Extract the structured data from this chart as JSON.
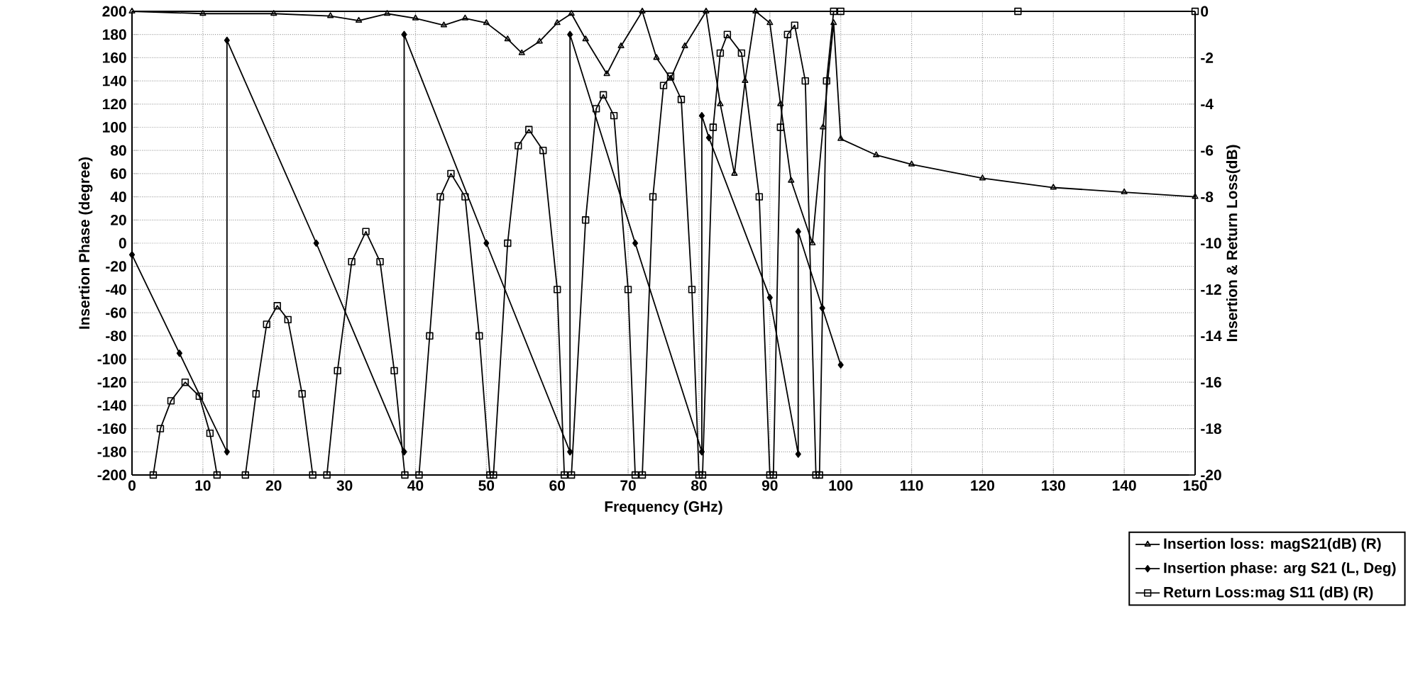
{
  "chart_data": {
    "type": "line",
    "xlabel": "Frequency (GHz)",
    "ylabel": "Insertion Phase (degree)",
    "y2label": "Insertion & Return Loss(dB)",
    "xlim": [
      0,
      150
    ],
    "xticks": [
      0,
      10,
      20,
      30,
      40,
      50,
      60,
      70,
      80,
      90,
      100,
      110,
      120,
      130,
      140,
      150
    ],
    "ylim": [
      -200,
      200
    ],
    "yticks": [
      -200,
      -180,
      -160,
      -140,
      -120,
      -100,
      -80,
      -60,
      -40,
      -20,
      0,
      20,
      40,
      60,
      80,
      100,
      120,
      140,
      160,
      180,
      200
    ],
    "y2lim": [
      -20,
      0
    ],
    "y2ticks": [
      -20,
      -18,
      -16,
      -14,
      -12,
      -10,
      -8,
      -6,
      -4,
      -2,
      0
    ],
    "grid": true,
    "legend": "bottom right",
    "series": [
      {
        "name": "Insertion loss: magS21(dB) (R)",
        "color": "#000000",
        "axis": "y2",
        "marker": "triangle",
        "x": [
          0,
          10,
          20,
          28,
          32,
          36,
          40,
          44,
          47,
          50,
          53,
          55,
          57.5,
          60,
          62,
          64,
          67,
          69,
          72,
          74,
          76,
          78,
          81,
          83,
          85,
          86.5,
          88,
          90,
          91.5,
          93,
          96,
          97.5,
          99,
          100,
          105,
          110,
          120,
          130,
          140,
          150
        ],
        "values": [
          0,
          -0.1,
          -0.1,
          -0.2,
          -0.4,
          -0.1,
          -0.3,
          -0.6,
          -0.3,
          -0.5,
          -1.2,
          -1.8,
          -1.3,
          -0.5,
          -0.1,
          -1.2,
          -2.7,
          -1.5,
          0,
          -2,
          -2.9,
          -1.5,
          0,
          -4,
          -7,
          -3,
          0,
          -0.5,
          -4,
          -7.3,
          -10,
          -5,
          -0.5,
          -5.5,
          -6.2,
          -6.6,
          -7.2,
          -7.6,
          -7.8,
          -8.0
        ]
      },
      {
        "name": "Insertion phase: arg S21 (L, Deg)",
        "color": "#000000",
        "axis": "y",
        "marker": "diamond",
        "x": [
          0,
          6.7,
          13.4,
          13.4,
          26,
          38.4,
          38.4,
          50,
          61.8,
          61.8,
          71,
          80.4,
          80.4,
          81.4,
          90,
          94,
          94,
          97.4,
          100
        ],
        "values": [
          -10,
          -95,
          -180,
          175,
          0,
          -180,
          180,
          0,
          -180,
          180,
          0,
          -180,
          110,
          91,
          -47,
          -182,
          10,
          -56,
          -105
        ]
      },
      {
        "name": "Return Loss:mag S11 (dB) (R)",
        "color": "#000000",
        "axis": "y2",
        "marker": "square",
        "x": [
          3,
          4,
          5.5,
          7.5,
          9.5,
          11,
          12,
          16,
          17.5,
          19,
          20.5,
          22,
          24,
          25.5,
          27.5,
          29,
          31,
          33,
          35,
          37,
          38.5,
          40.5,
          42,
          43.5,
          45,
          47,
          49,
          50.5,
          51,
          53,
          54.5,
          56,
          58,
          60,
          61,
          62,
          64,
          65.5,
          66.5,
          68,
          70,
          71,
          72,
          73.5,
          75,
          76,
          77.5,
          79,
          80,
          80.5,
          82,
          83,
          84,
          86,
          88.5,
          90,
          90.5,
          91.5,
          92.5,
          93.5,
          95,
          96.5,
          97,
          98,
          99,
          100,
          125,
          150
        ],
        "values": [
          -20,
          -18,
          -16.8,
          -16.0,
          -16.6,
          -18.2,
          -20,
          -20,
          -16.5,
          -13.5,
          -12.7,
          -13.3,
          -16.5,
          -20,
          -20,
          -15.5,
          -10.8,
          -9.5,
          -10.8,
          -15.5,
          -20,
          -20,
          -14,
          -8,
          -7.0,
          -8,
          -14,
          -20,
          -20,
          -10,
          -5.8,
          -5.1,
          -6,
          -12,
          -20,
          -20,
          -9,
          -4.2,
          -3.6,
          -4.5,
          -12,
          -20,
          -20,
          -8,
          -3.2,
          -2.8,
          -3.8,
          -12,
          -20,
          -20,
          -5,
          -1.8,
          -1.0,
          -1.8,
          -8,
          -20,
          -20,
          -5,
          -1,
          -0.6,
          -3,
          -20,
          -20,
          -3,
          0,
          0,
          0,
          0
        ]
      }
    ]
  }
}
